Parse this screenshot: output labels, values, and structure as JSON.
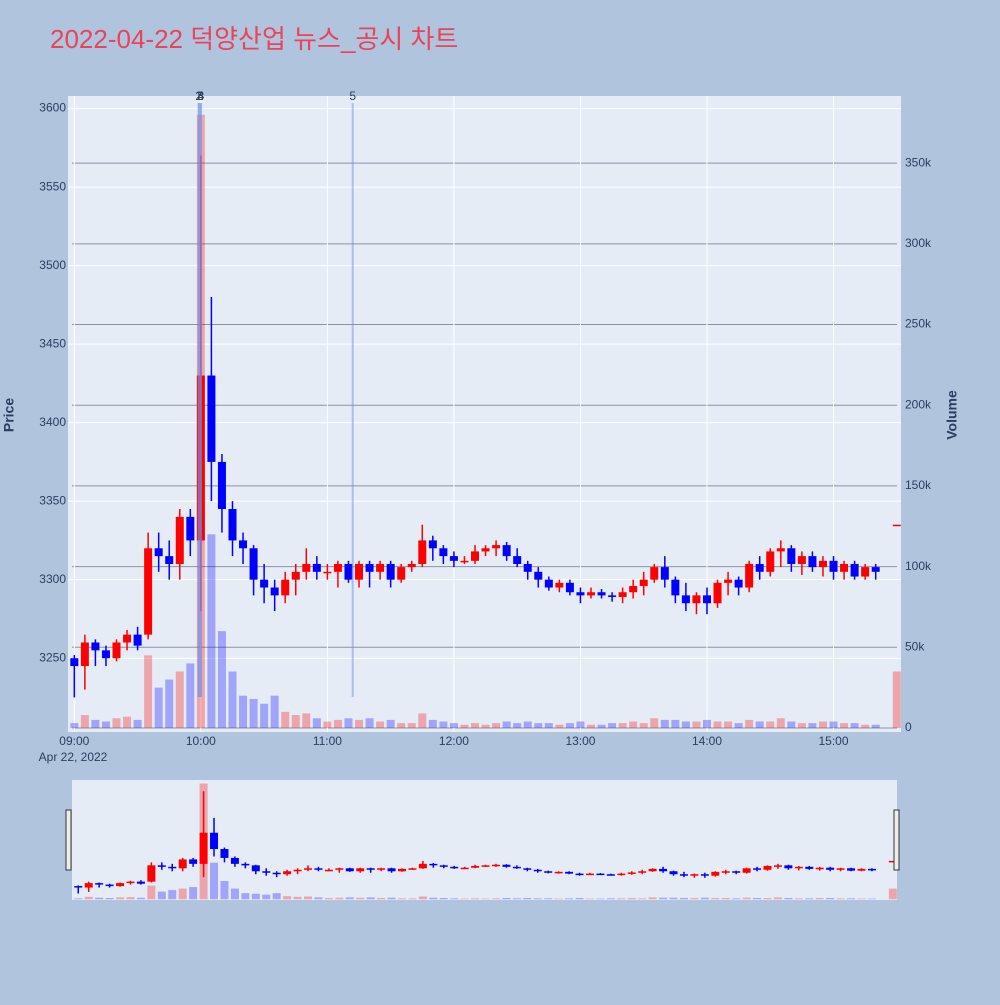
{
  "chart_data": {
    "type": "candlestick",
    "title": "2022-04-22 덕양산업 뉴스_공시 차트",
    "y_label": "Price",
    "y2_label": "Volume",
    "x": [
      "2022-04-22 09:00",
      "2022-04-22 09:05",
      "2022-04-22 09:10",
      "2022-04-22 09:15",
      "2022-04-22 09:20",
      "2022-04-22 09:25",
      "2022-04-22 09:30",
      "2022-04-22 09:35",
      "2022-04-22 09:40",
      "2022-04-22 09:45",
      "2022-04-22 09:50",
      "2022-04-22 09:55",
      "2022-04-22 10:00",
      "2022-04-22 10:05",
      "2022-04-22 10:10",
      "2022-04-22 10:15",
      "2022-04-22 10:20",
      "2022-04-22 10:25",
      "2022-04-22 10:30",
      "2022-04-22 10:35",
      "2022-04-22 10:40",
      "2022-04-22 10:45",
      "2022-04-22 10:50",
      "2022-04-22 10:55",
      "2022-04-22 11:00",
      "2022-04-22 11:05",
      "2022-04-22 11:10",
      "2022-04-22 11:15",
      "2022-04-22 11:20",
      "2022-04-22 11:25",
      "2022-04-22 11:30",
      "2022-04-22 11:35",
      "2022-04-22 11:40",
      "2022-04-22 11:45",
      "2022-04-22 11:50",
      "2022-04-22 11:55",
      "2022-04-22 12:00",
      "2022-04-22 12:05",
      "2022-04-22 12:10",
      "2022-04-22 12:15",
      "2022-04-22 12:20",
      "2022-04-22 12:25",
      "2022-04-22 12:30",
      "2022-04-22 12:35",
      "2022-04-22 12:40",
      "2022-04-22 12:45",
      "2022-04-22 12:50",
      "2022-04-22 12:55",
      "2022-04-22 13:00",
      "2022-04-22 13:05",
      "2022-04-22 13:10",
      "2022-04-22 13:15",
      "2022-04-22 13:20",
      "2022-04-22 13:25",
      "2022-04-22 13:30",
      "2022-04-22 13:35",
      "2022-04-22 13:40",
      "2022-04-22 13:45",
      "2022-04-22 13:50",
      "2022-04-22 13:55",
      "2022-04-22 14:00",
      "2022-04-22 14:05",
      "2022-04-22 14:10",
      "2022-04-22 14:15",
      "2022-04-22 14:20",
      "2022-04-22 14:25",
      "2022-04-22 14:30",
      "2022-04-22 14:35",
      "2022-04-22 14:40",
      "2022-04-22 14:45",
      "2022-04-22 14:50",
      "2022-04-22 14:55",
      "2022-04-22 15:00",
      "2022-04-22 15:05",
      "2022-04-22 15:10",
      "2022-04-22 15:15",
      "2022-04-22 15:20",
      "2022-04-22 15:30"
    ],
    "open": [
      3250,
      3245,
      3260,
      3255,
      3250,
      3260,
      3265,
      3265,
      3320,
      3315,
      3310,
      3340,
      3325,
      3430,
      3375,
      3345,
      3325,
      3320,
      3300,
      3295,
      3290,
      3300,
      3305,
      3310,
      3305,
      3305,
      3310,
      3300,
      3310,
      3305,
      3310,
      3300,
      3308,
      3310,
      3325,
      3320,
      3315,
      3312,
      3312,
      3318,
      3320,
      3322,
      3315,
      3310,
      3305,
      3300,
      3295,
      3298,
      3292,
      3290,
      3292,
      3290,
      3289,
      3292,
      3296,
      3300,
      3308,
      3300,
      3290,
      3285,
      3290,
      3285,
      3298,
      3300,
      3295,
      3310,
      3305,
      3318,
      3320,
      3310,
      3315,
      3308,
      3312,
      3305,
      3310,
      3302,
      3308,
      3335
    ],
    "high": [
      3252,
      3265,
      3262,
      3258,
      3262,
      3268,
      3270,
      3330,
      3330,
      3325,
      3345,
      3345,
      3570,
      3480,
      3380,
      3350,
      3330,
      3322,
      3310,
      3300,
      3305,
      3310,
      3320,
      3315,
      3310,
      3312,
      3312,
      3312,
      3312,
      3312,
      3312,
      3310,
      3312,
      3335,
      3328,
      3322,
      3318,
      3315,
      3322,
      3322,
      3325,
      3324,
      3320,
      3312,
      3308,
      3302,
      3300,
      3300,
      3295,
      3295,
      3294,
      3292,
      3295,
      3300,
      3305,
      3310,
      3315,
      3302,
      3298,
      3292,
      3295,
      3300,
      3305,
      3302,
      3312,
      3315,
      3320,
      3325,
      3322,
      3318,
      3318,
      3315,
      3315,
      3312,
      3312,
      3310,
      3310,
      3335
    ],
    "low": [
      3225,
      3230,
      3245,
      3245,
      3248,
      3255,
      3255,
      3262,
      3305,
      3300,
      3300,
      3315,
      3280,
      3350,
      3330,
      3315,
      3310,
      3290,
      3285,
      3280,
      3285,
      3290,
      3300,
      3300,
      3300,
      3295,
      3298,
      3295,
      3295,
      3300,
      3295,
      3298,
      3305,
      3308,
      3312,
      3310,
      3308,
      3310,
      3310,
      3315,
      3315,
      3312,
      3308,
      3300,
      3295,
      3293,
      3292,
      3290,
      3285,
      3288,
      3288,
      3286,
      3285,
      3288,
      3290,
      3298,
      3295,
      3285,
      3280,
      3278,
      3278,
      3282,
      3290,
      3290,
      3292,
      3300,
      3302,
      3308,
      3305,
      3303,
      3305,
      3302,
      3300,
      3300,
      3300,
      3300,
      3300,
      3335
    ],
    "close": [
      3245,
      3260,
      3255,
      3250,
      3260,
      3265,
      3258,
      3320,
      3315,
      3310,
      3340,
      3325,
      3430,
      3375,
      3345,
      3325,
      3320,
      3300,
      3295,
      3290,
      3300,
      3305,
      3310,
      3305,
      3305,
      3310,
      3300,
      3310,
      3305,
      3310,
      3300,
      3308,
      3310,
      3325,
      3320,
      3315,
      3312,
      3312,
      3318,
      3320,
      3322,
      3315,
      3310,
      3305,
      3300,
      3295,
      3298,
      3292,
      3290,
      3292,
      3290,
      3289,
      3292,
      3296,
      3300,
      3308,
      3300,
      3290,
      3285,
      3290,
      3285,
      3298,
      3300,
      3295,
      3310,
      3305,
      3318,
      3320,
      3310,
      3315,
      3308,
      3312,
      3305,
      3310,
      3302,
      3308,
      3305,
      3335
    ],
    "volume": [
      3000,
      8000,
      5000,
      4000,
      6000,
      7000,
      5000,
      45000,
      25000,
      30000,
      35000,
      40000,
      380000,
      120000,
      60000,
      35000,
      20000,
      18000,
      15000,
      20000,
      10000,
      8000,
      9000,
      6000,
      4000,
      5000,
      6000,
      5000,
      6000,
      4000,
      5000,
      3000,
      3000,
      9000,
      5000,
      4000,
      3000,
      2000,
      3000,
      2000,
      3000,
      4000,
      3000,
      4000,
      3000,
      3000,
      2000,
      3000,
      4000,
      2000,
      2000,
      3000,
      3000,
      4000,
      3000,
      6000,
      5000,
      5000,
      4000,
      4000,
      5000,
      4000,
      4000,
      3000,
      5000,
      4000,
      4000,
      6000,
      4000,
      3000,
      3000,
      4000,
      4000,
      3000,
      3000,
      2000,
      2000,
      35000
    ],
    "increasing_color": "#ff0000",
    "decreasing_color": "#0000ff",
    "xlim": [
      "2022-04-22 08:57",
      "2022-04-22 15:32"
    ],
    "xticks": [
      {
        "value": "2022-04-22 09:00",
        "label": "09:00"
      },
      {
        "value": "2022-04-22 10:00",
        "label": "10:00"
      },
      {
        "value": "2022-04-22 11:00",
        "label": "11:00"
      },
      {
        "value": "2022-04-22 12:00",
        "label": "12:00"
      },
      {
        "value": "2022-04-22 13:00",
        "label": "13:00"
      },
      {
        "value": "2022-04-22 14:00",
        "label": "14:00"
      },
      {
        "value": "2022-04-22 15:00",
        "label": "15:00"
      }
    ],
    "x_date_label": "Apr 22, 2022",
    "ylim": [
      3203,
      3608
    ],
    "yticks": [
      3250,
      3300,
      3350,
      3400,
      3450,
      3500,
      3550,
      3600
    ],
    "y2lim": [
      -2500,
      391600
    ],
    "y2ticks": [
      {
        "value": 0,
        "label": "0"
      },
      {
        "value": 50000,
        "label": "50k"
      },
      {
        "value": 100000,
        "label": "100k"
      },
      {
        "value": 150000,
        "label": "150k"
      },
      {
        "value": 200000,
        "label": "200k"
      },
      {
        "value": 250000,
        "label": "250k"
      },
      {
        "value": 300000,
        "label": "300k"
      },
      {
        "value": 350000,
        "label": "350k"
      }
    ],
    "annotations": [
      {
        "x": "2022-04-22 09:59",
        "label": "1"
      },
      {
        "x": "2022-04-22 09:59",
        "label": "2"
      },
      {
        "x": "2022-04-22 10:00",
        "label": "3"
      },
      {
        "x": "2022-04-22 10:00",
        "label": "4"
      },
      {
        "x": "2022-04-22 11:12",
        "label": "5"
      }
    ],
    "grid": true,
    "rangeslider": true
  }
}
